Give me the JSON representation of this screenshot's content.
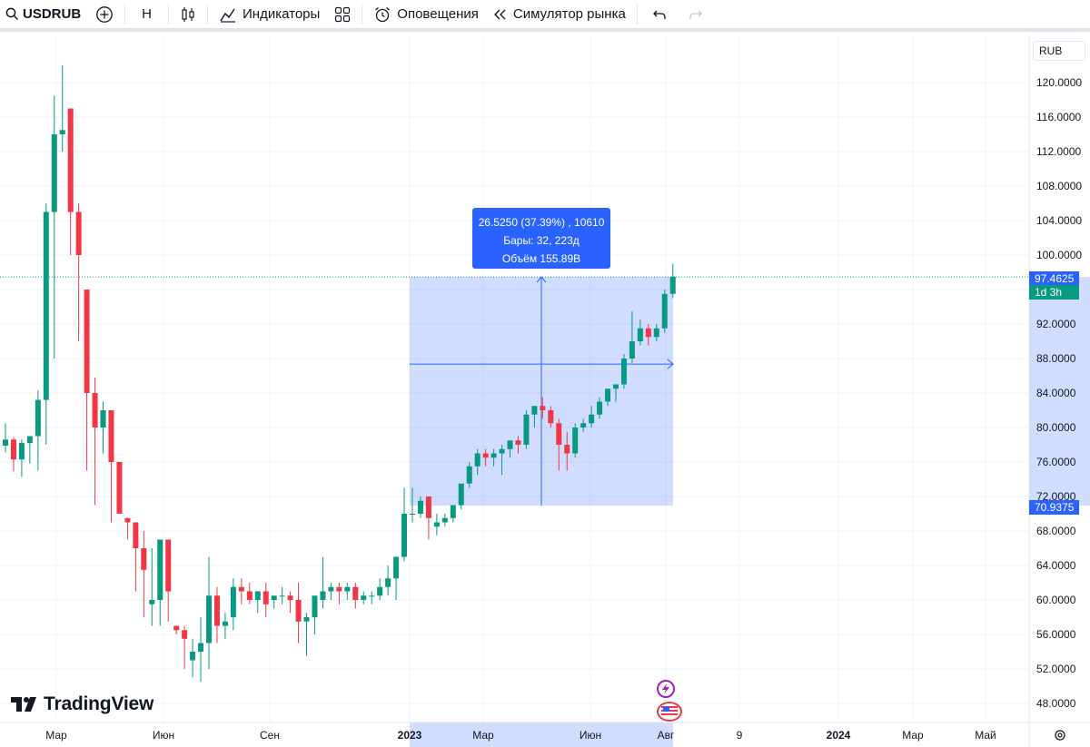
{
  "toolbar": {
    "symbol": "USDRUB",
    "interval": "Н",
    "indicators_label": "Индикаторы",
    "alerts_label": "Оповещения",
    "replay_label": "Симулятор рынка"
  },
  "chart": {
    "currency": "RUB",
    "price_ticks": [
      "120.0000",
      "116.0000",
      "112.0000",
      "108.0000",
      "104.0000",
      "100.0000",
      "92.0000",
      "88.0000",
      "84.0000",
      "80.0000",
      "76.0000",
      "72.0000",
      "68.0000",
      "64.0000",
      "60.0000",
      "56.0000",
      "52.0000",
      "48.0000"
    ],
    "time_ticks": [
      "Мар",
      "Июн",
      "Сен",
      "2023",
      "Мар",
      "Июн",
      "Авг",
      "9",
      "2024",
      "Мар",
      "Май"
    ],
    "last_price": "97.4625",
    "countdown": "1d 3h",
    "range_low": "70.9375",
    "brand": "TradingView"
  },
  "measure": {
    "line1": "26.5250 (37.39%) , 10610",
    "line2": "Бары: 32, 223д",
    "line3": "Объём 155.89B"
  },
  "colors": {
    "up": "#089981",
    "down": "#f23645",
    "accent": "#2962ff"
  },
  "chart_data": {
    "type": "candlestick",
    "interval": "weekly",
    "candles": [
      [
        77.9,
        80.5,
        77.1,
        78.6
      ],
      [
        78.6,
        78.9,
        74.9,
        76.3
      ],
      [
        76.3,
        78.6,
        74.3,
        78.2
      ],
      [
        78.2,
        78.9,
        75.8,
        79.0
      ],
      [
        79.0,
        84.3,
        75.0,
        83.2
      ],
      [
        83.2,
        106,
        78,
        105
      ],
      [
        105,
        118.5,
        88,
        114
      ],
      [
        114,
        122,
        112,
        114.5
      ],
      [
        117,
        117,
        100,
        105
      ],
      [
        105,
        106,
        90,
        100
      ],
      [
        96,
        96,
        75,
        84
      ],
      [
        84,
        85.8,
        71,
        80
      ],
      [
        80,
        83,
        77,
        82
      ],
      [
        82,
        82,
        69,
        76
      ],
      [
        76,
        76,
        70,
        70
      ],
      [
        69.5,
        69.5,
        67,
        69
      ],
      [
        69,
        69,
        61,
        66
      ],
      [
        66,
        68,
        58,
        63.5
      ],
      [
        59.5,
        66,
        57,
        60
      ],
      [
        60,
        67,
        57,
        67
      ],
      [
        67,
        67,
        57.5,
        61
      ],
      [
        57,
        57,
        56,
        56.5
      ],
      [
        56.5,
        57,
        52,
        55.5
      ],
      [
        53,
        55.5,
        51,
        54
      ],
      [
        54,
        58,
        50.5,
        55
      ],
      [
        55,
        65,
        52,
        60.5
      ],
      [
        60.5,
        61.5,
        55,
        57
      ],
      [
        57,
        58.5,
        55.5,
        57.5
      ],
      [
        58,
        62.5,
        56.5,
        61.5
      ],
      [
        61.5,
        62.5,
        59.5,
        61
      ],
      [
        61,
        62,
        59.5,
        60
      ],
      [
        60,
        61,
        58.5,
        61
      ],
      [
        61,
        62,
        58,
        59.5
      ],
      [
        60,
        60.5,
        59,
        60.5
      ],
      [
        60.5,
        61.5,
        59.5,
        60.5
      ],
      [
        60.5,
        61,
        58.5,
        60
      ],
      [
        60,
        62,
        55,
        57.5
      ],
      [
        57.5,
        58.5,
        53.5,
        58
      ],
      [
        58,
        60,
        56,
        60.5
      ],
      [
        60,
        65,
        59,
        61
      ],
      [
        61,
        62,
        60,
        61.5
      ],
      [
        61.5,
        62,
        59.5,
        61
      ],
      [
        61,
        62,
        60,
        61.5
      ],
      [
        61.5,
        62,
        59,
        60
      ],
      [
        60,
        61,
        59.5,
        60.5
      ],
      [
        60.5,
        61,
        59.5,
        60.5
      ],
      [
        60.5,
        62.5,
        60,
        61.5
      ],
      [
        61.5,
        64,
        60.5,
        62.5
      ],
      [
        62.5,
        65,
        60,
        65
      ],
      [
        65,
        73,
        64.5,
        70
      ],
      [
        70,
        73,
        69,
        70
      ],
      [
        70,
        72,
        69.5,
        71.5
      ],
      [
        72,
        72,
        67,
        69.5
      ],
      [
        68.5,
        70,
        67.5,
        69
      ],
      [
        69,
        70,
        68.5,
        69.5
      ],
      [
        69.5,
        71,
        69,
        71
      ],
      [
        71,
        73,
        70.5,
        73.5
      ],
      [
        73.5,
        76,
        73,
        75.5
      ],
      [
        75.5,
        77.5,
        74.5,
        77
      ],
      [
        77,
        77.5,
        75.5,
        76.5
      ],
      [
        76.5,
        77.5,
        75.5,
        77
      ],
      [
        77,
        78,
        74.5,
        77.5
      ],
      [
        77.5,
        78.5,
        76.5,
        78.5
      ],
      [
        78.5,
        79,
        77,
        78
      ],
      [
        78,
        82,
        77.5,
        81.5
      ],
      [
        81.5,
        82.5,
        80,
        82.5
      ],
      [
        82.5,
        83.5,
        81,
        82
      ],
      [
        82,
        82.5,
        80,
        80.5
      ],
      [
        80.5,
        81,
        75,
        78
      ],
      [
        78,
        79.5,
        75,
        77
      ],
      [
        77,
        80.5,
        76.5,
        80
      ],
      [
        80,
        81,
        79.5,
        80.5
      ],
      [
        80.5,
        82.5,
        80,
        81.5
      ],
      [
        81.5,
        83.5,
        81,
        83
      ],
      [
        83,
        84.5,
        82.5,
        84.5
      ],
      [
        84.5,
        85,
        83,
        85
      ],
      [
        85,
        88.5,
        84.5,
        88
      ],
      [
        88,
        93.5,
        87.5,
        90
      ],
      [
        90,
        92.5,
        89.5,
        91.5
      ],
      [
        91.5,
        92,
        89.5,
        90.5
      ],
      [
        90.5,
        92,
        90,
        91.5
      ],
      [
        91.5,
        96,
        91,
        95.5
      ],
      [
        95.5,
        99,
        95,
        97.5
      ]
    ],
    "last_price": 97.4625,
    "measure_range": {
      "from": 70.9375,
      "to": 97.4625,
      "change": 26.525,
      "change_pct": 37.39
    },
    "y_axis": {
      "min": 46,
      "max": 124,
      "unit": "RUB"
    }
  }
}
